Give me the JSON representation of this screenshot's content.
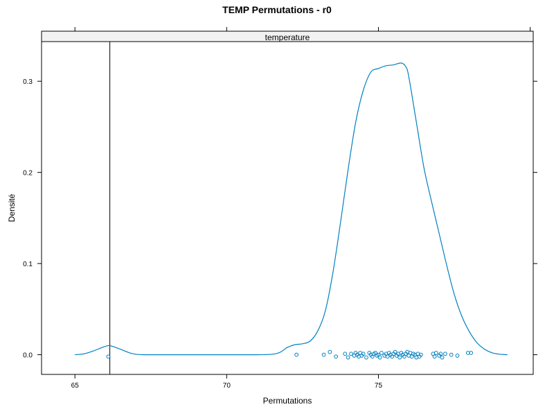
{
  "chart_data": {
    "type": "density",
    "title": "TEMP Permutations - r0",
    "panel_label": "temperature",
    "xlabel": "Permutations",
    "ylabel": "Densité",
    "xlim": [
      63.9,
      80.1
    ],
    "ylim": [
      -0.0216,
      0.3435
    ],
    "x_ticks": [
      65,
      70,
      75
    ],
    "x_ticks_top": [
      65,
      70,
      75,
      80
    ],
    "y_ticks": [
      0.0,
      0.1,
      0.2,
      0.3
    ],
    "reference_line_x": 66.15,
    "colors": {
      "curve": "#0080C0",
      "points": "#0080C0",
      "reference": "#000000",
      "strip": "#F2F2F2"
    },
    "density_curve": {
      "x": [
        65.0,
        65.3,
        65.6,
        65.9,
        66.1,
        66.2,
        66.5,
        66.8,
        67.0,
        67.2,
        67.5,
        68,
        69,
        70,
        71,
        71.5,
        71.75,
        72.0,
        72.25,
        72.5,
        72.75,
        73.0,
        73.25,
        73.5,
        73.75,
        74.0,
        74.25,
        74.5,
        74.75,
        75.0,
        75.25,
        75.5,
        75.75,
        75.9,
        76.0,
        76.25,
        76.5,
        76.75,
        77.0,
        77.25,
        77.5,
        77.75,
        78.0,
        78.25,
        78.5,
        78.75,
        79.0,
        79.25
      ],
      "y": [
        0.0,
        0.001,
        0.004,
        0.008,
        0.01,
        0.0095,
        0.006,
        0.002,
        0.0005,
        0.0001,
        0.0,
        0.0,
        0.0,
        0.0,
        0.0,
        0.0005,
        0.0025,
        0.008,
        0.011,
        0.012,
        0.015,
        0.026,
        0.048,
        0.09,
        0.145,
        0.203,
        0.255,
        0.29,
        0.31,
        0.314,
        0.317,
        0.318,
        0.32,
        0.316,
        0.305,
        0.255,
        0.205,
        0.168,
        0.133,
        0.098,
        0.066,
        0.042,
        0.025,
        0.013,
        0.006,
        0.002,
        0.0005,
        0.0
      ]
    },
    "points": [
      {
        "x": 66.1,
        "y": -0.002
      },
      {
        "x": 72.3,
        "y": 0.0
      },
      {
        "x": 73.2,
        "y": 0.0
      },
      {
        "x": 73.4,
        "y": 0.003
      },
      {
        "x": 73.6,
        "y": -0.002
      },
      {
        "x": 73.9,
        "y": 0.001
      },
      {
        "x": 74.0,
        "y": -0.003
      },
      {
        "x": 74.1,
        "y": 0.001
      },
      {
        "x": 74.2,
        "y": -0.001
      },
      {
        "x": 74.25,
        "y": 0.002
      },
      {
        "x": 74.3,
        "y": 0.0
      },
      {
        "x": 74.35,
        "y": -0.002
      },
      {
        "x": 74.4,
        "y": 0.002
      },
      {
        "x": 74.45,
        "y": -0.001
      },
      {
        "x": 74.5,
        "y": 0.001
      },
      {
        "x": 74.6,
        "y": -0.003
      },
      {
        "x": 74.7,
        "y": 0.002
      },
      {
        "x": 74.75,
        "y": 0.0
      },
      {
        "x": 74.8,
        "y": -0.002
      },
      {
        "x": 74.85,
        "y": 0.001
      },
      {
        "x": 74.9,
        "y": 0.002
      },
      {
        "x": 74.95,
        "y": -0.001
      },
      {
        "x": 75.0,
        "y": 0.0
      },
      {
        "x": 75.05,
        "y": -0.003
      },
      {
        "x": 75.1,
        "y": 0.002
      },
      {
        "x": 75.2,
        "y": -0.001
      },
      {
        "x": 75.25,
        "y": 0.001
      },
      {
        "x": 75.3,
        "y": -0.002
      },
      {
        "x": 75.35,
        "y": 0.002
      },
      {
        "x": 75.4,
        "y": 0.0
      },
      {
        "x": 75.45,
        "y": -0.002
      },
      {
        "x": 75.5,
        "y": 0.001
      },
      {
        "x": 75.55,
        "y": 0.003
      },
      {
        "x": 75.6,
        "y": -0.001
      },
      {
        "x": 75.65,
        "y": 0.001
      },
      {
        "x": 75.7,
        "y": -0.003
      },
      {
        "x": 75.75,
        "y": 0.002
      },
      {
        "x": 75.8,
        "y": 0.0
      },
      {
        "x": 75.85,
        "y": -0.002
      },
      {
        "x": 75.9,
        "y": 0.001
      },
      {
        "x": 75.95,
        "y": 0.003
      },
      {
        "x": 76.0,
        "y": -0.001
      },
      {
        "x": 76.05,
        "y": 0.002
      },
      {
        "x": 76.1,
        "y": -0.002
      },
      {
        "x": 76.15,
        "y": 0.001
      },
      {
        "x": 76.2,
        "y": 0.0
      },
      {
        "x": 76.25,
        "y": -0.003
      },
      {
        "x": 76.3,
        "y": 0.001
      },
      {
        "x": 76.35,
        "y": -0.002
      },
      {
        "x": 76.4,
        "y": 0.0
      },
      {
        "x": 76.8,
        "y": 0.001
      },
      {
        "x": 76.85,
        "y": -0.002
      },
      {
        "x": 76.9,
        "y": 0.002
      },
      {
        "x": 77.0,
        "y": -0.001
      },
      {
        "x": 77.05,
        "y": 0.001
      },
      {
        "x": 77.1,
        "y": -0.003
      },
      {
        "x": 77.2,
        "y": 0.001
      },
      {
        "x": 77.4,
        "y": 0.0
      },
      {
        "x": 77.6,
        "y": -0.001
      },
      {
        "x": 77.95,
        "y": 0.002
      },
      {
        "x": 78.05,
        "y": 0.002
      }
    ]
  }
}
